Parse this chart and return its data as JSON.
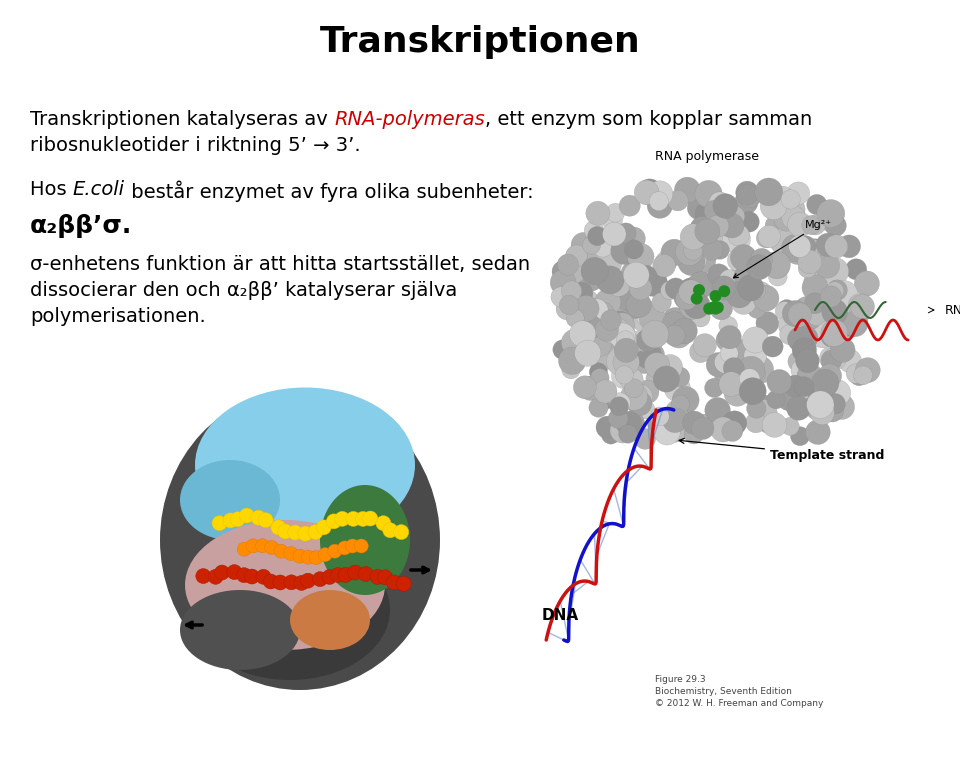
{
  "title": "Transkriptionen",
  "title_fontsize": 26,
  "title_fontweight": "bold",
  "bg_color": "#ffffff",
  "text_color": "#000000",
  "red_color": "#cc0000",
  "seg1": "Transkriptionen katalyseras av ",
  "seg2": "RNA-polymeras",
  "seg3": ", ett enzym som kopplar samman",
  "line2": "ribosnukleotider i riktning 5’ → 3’.",
  "para2_pre": "Hos ",
  "para2_italic": "E.coli",
  "para2_post": " består enzymet av fyra olika subenheter:",
  "subunit": "α₂ββ’σ.",
  "para3_l1": "σ-enhetens funktion är att hitta startsstället, sedan",
  "para3_l2": "dissocierar den och α₂ββ’ katalyserar själva",
  "para3_l3": "polymerisationen.",
  "label_rna_pol": "RNA polymerase",
  "label_mg": "Mg²⁺",
  "label_rna": "RNA",
  "label_template": "Template strand",
  "label_dna": "DNA",
  "fig_caption": "Figure 29.3\nBiochemistry, Seventh Edition\n© 2012 W. H. Freeman and Company",
  "fs_body": 14,
  "fs_subunit": 18,
  "fs_title": 26
}
